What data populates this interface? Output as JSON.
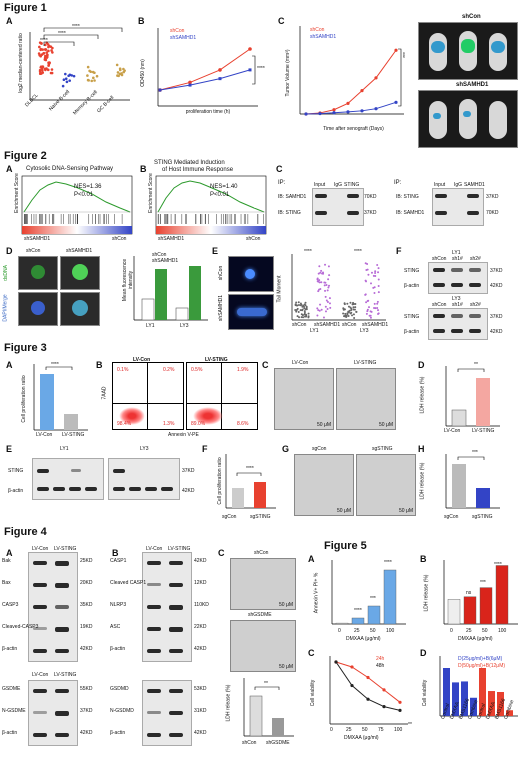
{
  "figures": {
    "f1": "Figure 1",
    "f2": "Figure 2",
    "f3": "Figure 3",
    "f4": "Figure 4",
    "f5": "Figure 5"
  },
  "panel_letters": {
    "a": "A",
    "b": "B",
    "c": "C",
    "d": "D",
    "e": "E",
    "f": "F",
    "g": "G",
    "h": "H"
  },
  "fig1": {
    "a": {
      "ylabel": "log2 median-centered ratio",
      "cats": [
        "DLBCL",
        "Naive B-cell",
        "Memory B-cell",
        "GC B-cell"
      ],
      "sig": "****",
      "ticks": [
        "2",
        "1",
        "0",
        "-1",
        "-2",
        "-3"
      ]
    },
    "b": {
      "ylabel": "OD450 (nm)",
      "xlabel": "proliferation time (h)",
      "legend": [
        "shCon",
        "shSAMHD1"
      ],
      "sig": "****",
      "xticks": [
        "0",
        "24",
        "48",
        "72"
      ],
      "yticks": [
        "0.0",
        "0.5",
        "1.0",
        "1.5",
        "2.0"
      ]
    },
    "c": {
      "ylabel": "Tumor Volume (mm³)",
      "xlabel": "Time after xenograft (Days)",
      "legend": [
        "shCon",
        "shSAMHD1"
      ],
      "sig": "***",
      "xticks": [
        "18",
        "20",
        "22",
        "24",
        "26",
        "28"
      ],
      "yticks": [
        "0",
        "1000",
        "2000",
        "3000",
        "4000"
      ]
    },
    "mice": {
      "top": "shCon",
      "bottom": "shSAMHD1"
    }
  },
  "fig2": {
    "a": {
      "title": "Cytosolic DNA-Sensing Pathway",
      "ylabel": "Enrichment Score",
      "nes": "NES=1.36",
      "p": "P<0.01",
      "left": "shSAMHD1",
      "right": "shCon"
    },
    "b": {
      "title1": "STING Mediated Induction",
      "title2": "of Host Immune Response",
      "ylabel": "Enrichment Score",
      "nes": "NES=1.40",
      "p": "P<0.01",
      "left": "shSAMHD1",
      "right": "shCon"
    },
    "c": {
      "ip_label": "IP:",
      "cols1": [
        "Input",
        "IgG",
        "STING"
      ],
      "rows1": [
        "IB: SAMHD1",
        "IB: STING"
      ],
      "kd1": [
        "70KD",
        "37KD"
      ],
      "cols2": [
        "Input",
        "IgG",
        "SAMHD1"
      ],
      "rows2": [
        "IB: STING",
        "IB: SAMHD1"
      ],
      "kd2": [
        "37KD",
        "70KD"
      ]
    },
    "d": {
      "cols": [
        "shCon",
        "shSAMHD1"
      ],
      "rows": [
        "dsDNA",
        "DAPI/Merge"
      ],
      "ylabel": "Mean fluorescence intensity",
      "legend": [
        "shCon",
        "shSAMHD1"
      ],
      "cats": [
        "LY1",
        "LY3"
      ],
      "sig": [
        "**",
        "*"
      ]
    },
    "e": {
      "rows": [
        "shCon",
        "shSAMHD1"
      ],
      "ylabel": "Tail Moment",
      "cats": [
        "shCon",
        "shSAMHD1",
        "shCon",
        "shSAMHD1"
      ],
      "groups": [
        "LY1",
        "LY3"
      ],
      "sig": [
        "****",
        "****"
      ]
    },
    "f": {
      "lines": [
        "LY1",
        "LY3"
      ],
      "cols": [
        "shCon",
        "sh1#",
        "sh2#"
      ],
      "rows": [
        "STING",
        "β-actin"
      ],
      "kd": [
        "37KD",
        "42KD"
      ]
    }
  },
  "fig3": {
    "a": {
      "ylabel": "Cell proliferation ratio",
      "cats": [
        "LV-Con",
        "LV-STING"
      ],
      "sig": "****"
    },
    "b": {
      "cols": [
        "LV-Con",
        "LV-STING"
      ],
      "ylabel": "7AAD",
      "xlabel": "Annexin V-PE",
      "q1": [
        "0.1%",
        "0.2%",
        "98.4%",
        "1.3%"
      ],
      "q2": [
        "0.5%",
        "1.9%",
        "89.0%",
        "8.6%"
      ]
    },
    "c": {
      "cols": [
        "LV-Con",
        "LV-STING"
      ],
      "scale": "50 μM"
    },
    "d": {
      "ylabel": "LDH release (%)",
      "cats": [
        "LV-Con",
        "LV-STING"
      ],
      "sig": "**"
    },
    "e": {
      "lines": [
        "LY1",
        "LY3"
      ],
      "cols": [
        "sgCon",
        "sg01",
        "sg02",
        "sg03"
      ],
      "rows": [
        "STING",
        "β-actin"
      ],
      "kd": [
        "37KD",
        "42KD"
      ]
    },
    "f": {
      "ylabel": "Cell proliferation ratio",
      "cats": [
        "sgCon",
        "sgSTING"
      ],
      "sig": "****"
    },
    "g": {
      "cols": [
        "sgCon",
        "sgSTING"
      ],
      "scale": "50 μM"
    },
    "h": {
      "ylabel": "LDH release (%)",
      "cats": [
        "sgCon",
        "sgSTING"
      ],
      "sig": "***"
    }
  },
  "fig4": {
    "a": {
      "cols": [
        "LV-Con",
        "LV-STING"
      ],
      "rows": [
        "Bak",
        "Bax",
        "CASP3",
        "Cleaved-CASP3",
        "β-actin"
      ],
      "kd": [
        "25KD",
        "20KD",
        "35KD",
        "19KD",
        "42KD"
      ],
      "cols2": [
        "LV-Con",
        "LV-STING"
      ],
      "rows2": [
        "GSDME",
        "N-GSDME",
        "β-actin"
      ],
      "kd2": [
        "55KD",
        "37KD",
        "42KD"
      ]
    },
    "b": {
      "cols": [
        "LV-Con",
        "LV-STING"
      ],
      "rows": [
        "CASP1",
        "Cleaved CASP1",
        "NLRP3",
        "ASC",
        "β-actin"
      ],
      "kd": [
        "42KD",
        "12KD",
        "110KD",
        "22KD",
        "42KD"
      ],
      "rows2": [
        "GSDMD",
        "N-GSDMD",
        "β-actin"
      ],
      "kd2": [
        "53KD",
        "31KD",
        "42KD"
      ]
    },
    "c": {
      "cols": [
        "shCon",
        "shGSDME"
      ],
      "scale": "50 μM",
      "ylabel": "LDH release (%)",
      "sig": "**"
    }
  },
  "fig5": {
    "a": {
      "ylabel": "Annexin V+ PI+ %",
      "xlabel": "DMXAA (μg/ml)",
      "xticks": [
        "0",
        "25",
        "50",
        "100"
      ],
      "sig": [
        "****",
        "***",
        "****"
      ]
    },
    "b": {
      "ylabel": "LDH release (%)",
      "xlabel": "DMXAA (μg/ml)",
      "xticks": [
        "0",
        "25",
        "50",
        "100"
      ],
      "sig": [
        "ns",
        "***",
        "****"
      ]
    },
    "c": {
      "ylabel": "Cell viability",
      "xlabel": "DMXAA (μg/ml)",
      "xticks": [
        "0",
        "25",
        "50",
        "75",
        "100"
      ],
      "legend": [
        "24h",
        "48h"
      ],
      "sig": "**"
    },
    "d": {
      "ylabel": "Cell viability",
      "legend": [
        "D(25μg/ml)+B(6μM)",
        "D(50μg/ml)+B(12μM)"
      ],
      "cats": [
        "Control",
        "DMXAA",
        "BMS1166",
        "Combine",
        "Control",
        "DMXAA",
        "BMS1166",
        "Combine"
      ]
    }
  },
  "colors": {
    "red": "#e8412f",
    "blue": "#3344c6",
    "lightblue": "#6aa8e6",
    "pink": "#f4a7a1",
    "green": "#3a9a3c",
    "gray": "#bdbdbd",
    "darkred": "#d9241b",
    "purple": "#b76bd6"
  }
}
